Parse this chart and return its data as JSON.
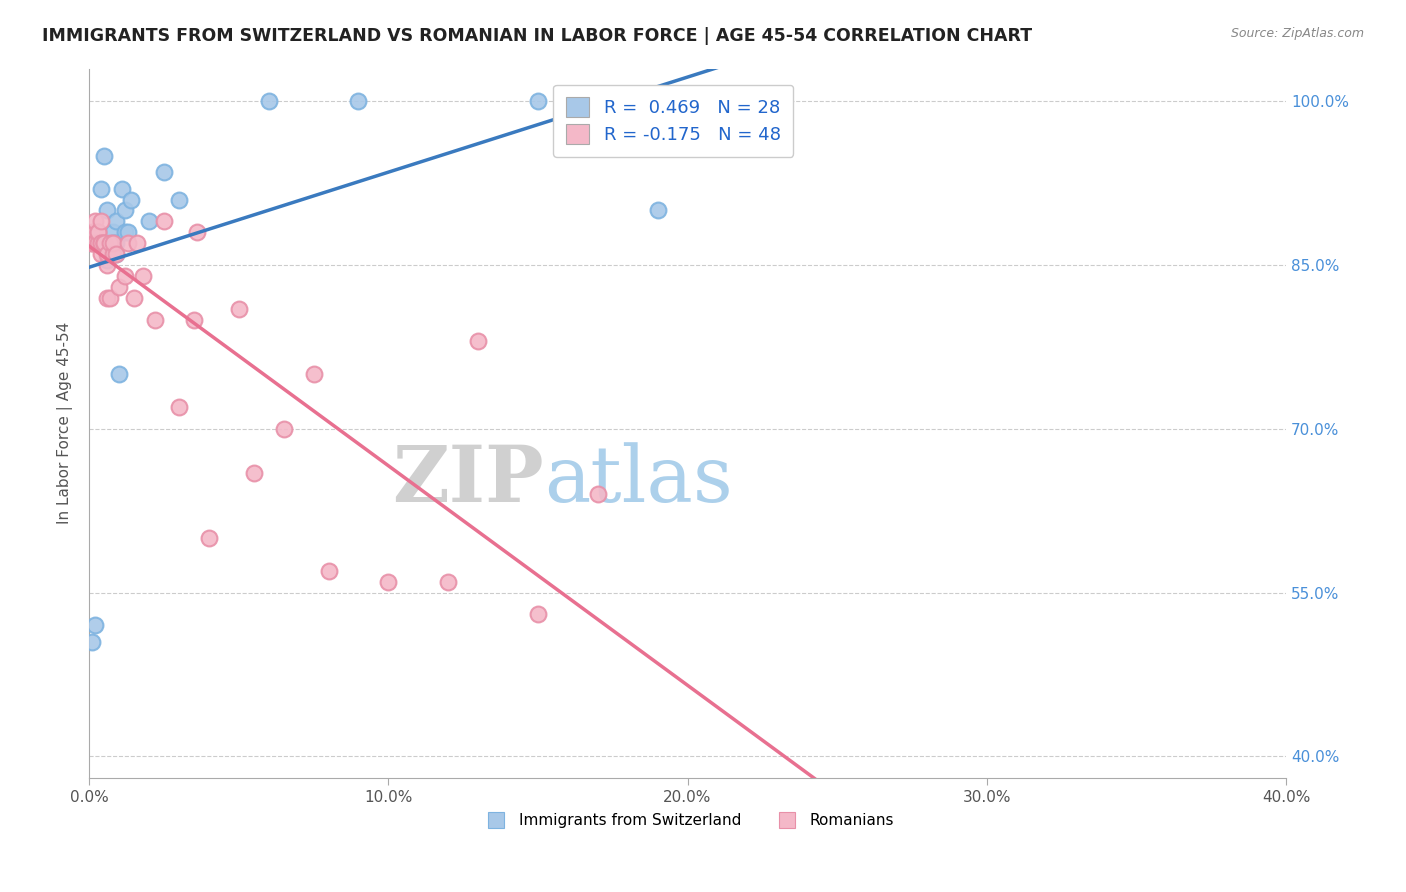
{
  "title": "IMMIGRANTS FROM SWITZERLAND VS ROMANIAN IN LABOR FORCE | AGE 45-54 CORRELATION CHART",
  "source": "Source: ZipAtlas.com",
  "xlabel_ticks": [
    "0.0%",
    "",
    "",
    "",
    "",
    "10.0%",
    "",
    "",
    "",
    "",
    "20.0%",
    "",
    "",
    "",
    "",
    "30.0%",
    "",
    "",
    "",
    "",
    "40.0%"
  ],
  "ylabel_label": "In Labor Force | Age 45-54",
  "ytick_labels": [
    "40.0%",
    "55.0%",
    "70.0%",
    "85.0%",
    "100.0%"
  ],
  "ytick_values": [
    0.4,
    0.55,
    0.7,
    0.85,
    1.0
  ],
  "xtick_values": [
    0.0,
    0.02,
    0.04,
    0.06,
    0.08,
    0.1,
    0.12,
    0.14,
    0.16,
    0.18,
    0.2,
    0.22,
    0.24,
    0.26,
    0.28,
    0.3,
    0.32,
    0.34,
    0.36,
    0.38,
    0.4
  ],
  "xlim": [
    0.0,
    0.4
  ],
  "ylim": [
    0.38,
    1.03
  ],
  "legend_blue_label": "Immigrants from Switzerland",
  "legend_pink_label": "Romanians",
  "r_blue": "R =  0.469",
  "n_blue": "N = 28",
  "r_pink": "R = -0.175",
  "n_pink": "N = 48",
  "swiss_x": [
    0.001,
    0.002,
    0.003,
    0.004,
    0.005,
    0.005,
    0.006,
    0.006,
    0.007,
    0.008,
    0.008,
    0.008,
    0.009,
    0.009,
    0.009,
    0.01,
    0.011,
    0.012,
    0.012,
    0.013,
    0.014,
    0.02,
    0.025,
    0.03,
    0.06,
    0.09,
    0.15,
    0.19
  ],
  "swiss_y": [
    0.505,
    0.52,
    0.88,
    0.92,
    0.95,
    0.87,
    0.9,
    0.855,
    0.862,
    0.87,
    0.88,
    0.87,
    0.86,
    0.89,
    0.87,
    0.75,
    0.92,
    0.88,
    0.9,
    0.88,
    0.91,
    0.89,
    0.935,
    0.91,
    1.0,
    1.0,
    1.0,
    0.9
  ],
  "romanian_x": [
    0.001,
    0.001,
    0.001,
    0.002,
    0.002,
    0.002,
    0.002,
    0.003,
    0.003,
    0.003,
    0.003,
    0.004,
    0.004,
    0.004,
    0.004,
    0.005,
    0.005,
    0.005,
    0.006,
    0.006,
    0.006,
    0.007,
    0.007,
    0.008,
    0.008,
    0.009,
    0.01,
    0.012,
    0.013,
    0.015,
    0.016,
    0.018,
    0.022,
    0.025,
    0.03,
    0.035,
    0.036,
    0.04,
    0.05,
    0.055,
    0.065,
    0.075,
    0.08,
    0.1,
    0.12,
    0.13,
    0.15,
    0.17
  ],
  "romanian_y": [
    0.87,
    0.88,
    0.87,
    0.88,
    0.87,
    0.89,
    0.87,
    0.88,
    0.87,
    0.87,
    0.88,
    0.87,
    0.86,
    0.87,
    0.89,
    0.87,
    0.87,
    0.87,
    0.82,
    0.85,
    0.86,
    0.82,
    0.87,
    0.86,
    0.87,
    0.86,
    0.83,
    0.84,
    0.87,
    0.82,
    0.87,
    0.84,
    0.8,
    0.89,
    0.72,
    0.8,
    0.88,
    0.6,
    0.81,
    0.66,
    0.7,
    0.75,
    0.57,
    0.56,
    0.56,
    0.78,
    0.53,
    0.64
  ],
  "blue_color": "#a8c8e8",
  "blue_edge_color": "#7eb3e0",
  "pink_color": "#f4b8c8",
  "pink_edge_color": "#e890a8",
  "blue_line_color": "#3a7abf",
  "pink_line_color": "#e87090",
  "grid_color": "#cccccc",
  "background_color": "#ffffff",
  "watermark_zip_color": "#c8c8c8",
  "watermark_atlas_color": "#9ec8e8"
}
